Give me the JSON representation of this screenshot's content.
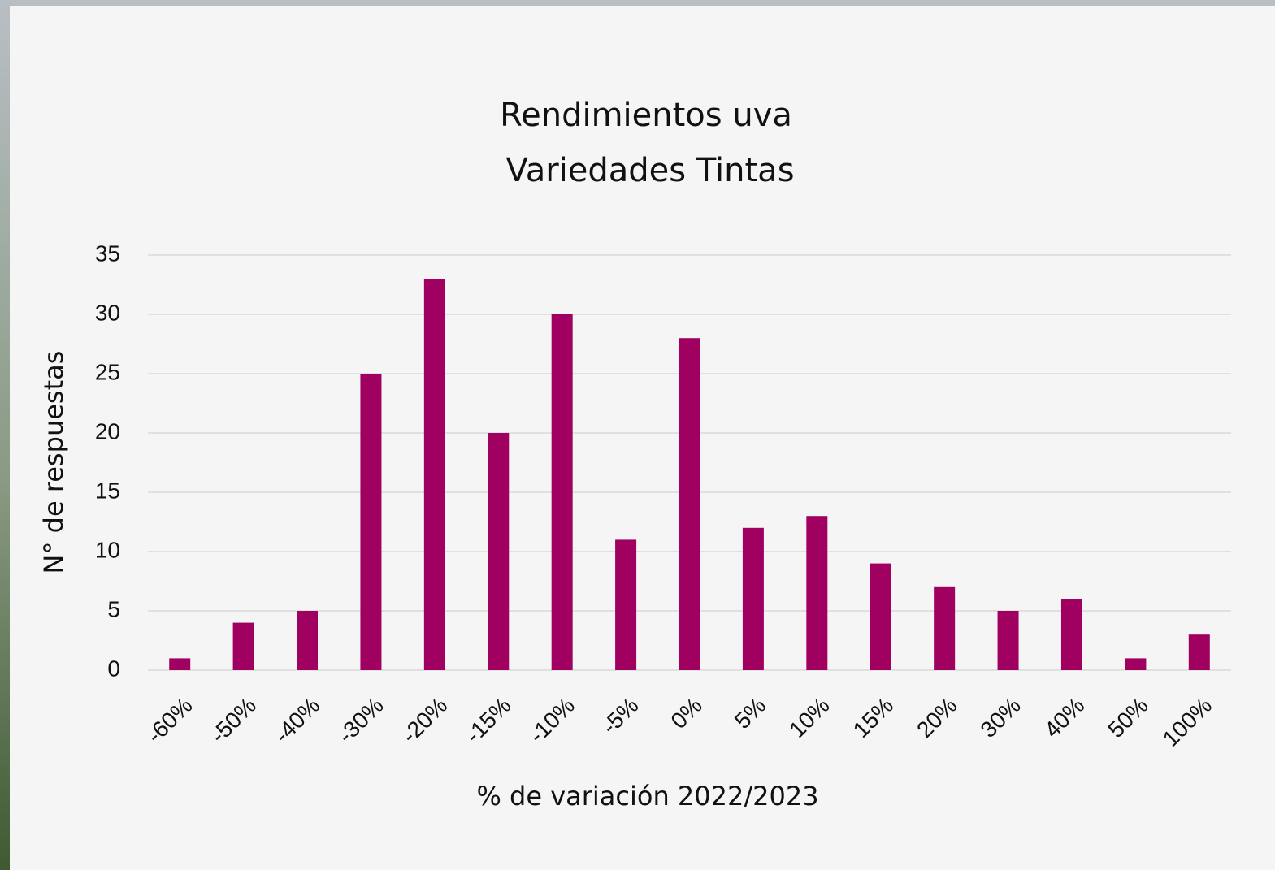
{
  "chart_data": {
    "type": "bar",
    "title": "Rendimientos uva",
    "subtitle": "Variedades Tintas",
    "x_label": "% de variación 2022/2023",
    "y_label": "N° de respuestas",
    "categories": [
      "-60%",
      "-50%",
      "-40%",
      "-30%",
      "-20%",
      "-15%",
      "-10%",
      "-5%",
      "0%",
      "5%",
      "10%",
      "15%",
      "20%",
      "30%",
      "40%",
      "50%",
      "100%"
    ],
    "values": [
      1,
      4,
      5,
      25,
      33,
      20,
      30,
      11,
      28,
      12,
      13,
      9,
      7,
      5,
      6,
      1,
      3
    ],
    "color": "#a0005f",
    "ylim": [
      0,
      35
    ],
    "yticks": [
      0,
      5,
      10,
      15,
      20,
      25,
      30,
      35
    ],
    "grid": true
  }
}
